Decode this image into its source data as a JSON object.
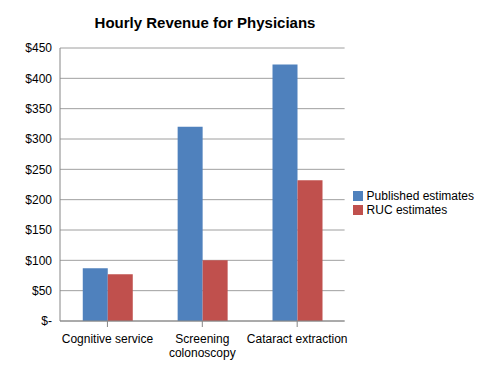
{
  "chart_data": {
    "type": "bar",
    "title": "Hourly Revenue for Physicians",
    "categories": [
      "Cognitive service",
      "Screening colonoscopy",
      "Cataract extraction"
    ],
    "series": [
      {
        "name": "Published estimates",
        "color": "#4f81bd",
        "values": [
          87,
          320,
          423
        ]
      },
      {
        "name": "RUC estimates",
        "color": "#c0504d",
        "values": [
          77,
          100,
          232
        ]
      }
    ],
    "ylim": [
      0,
      450
    ],
    "yticks": [
      {
        "value": 0,
        "label": "$-"
      },
      {
        "value": 50,
        "label": "$50"
      },
      {
        "value": 100,
        "label": "$100"
      },
      {
        "value": 150,
        "label": "$150"
      },
      {
        "value": 200,
        "label": "$200"
      },
      {
        "value": 250,
        "label": "$250"
      },
      {
        "value": 300,
        "label": "$300"
      },
      {
        "value": 350,
        "label": "$350"
      },
      {
        "value": 400,
        "label": "$400"
      },
      {
        "value": 450,
        "label": "$450"
      }
    ],
    "grid": true,
    "legend": "right"
  }
}
